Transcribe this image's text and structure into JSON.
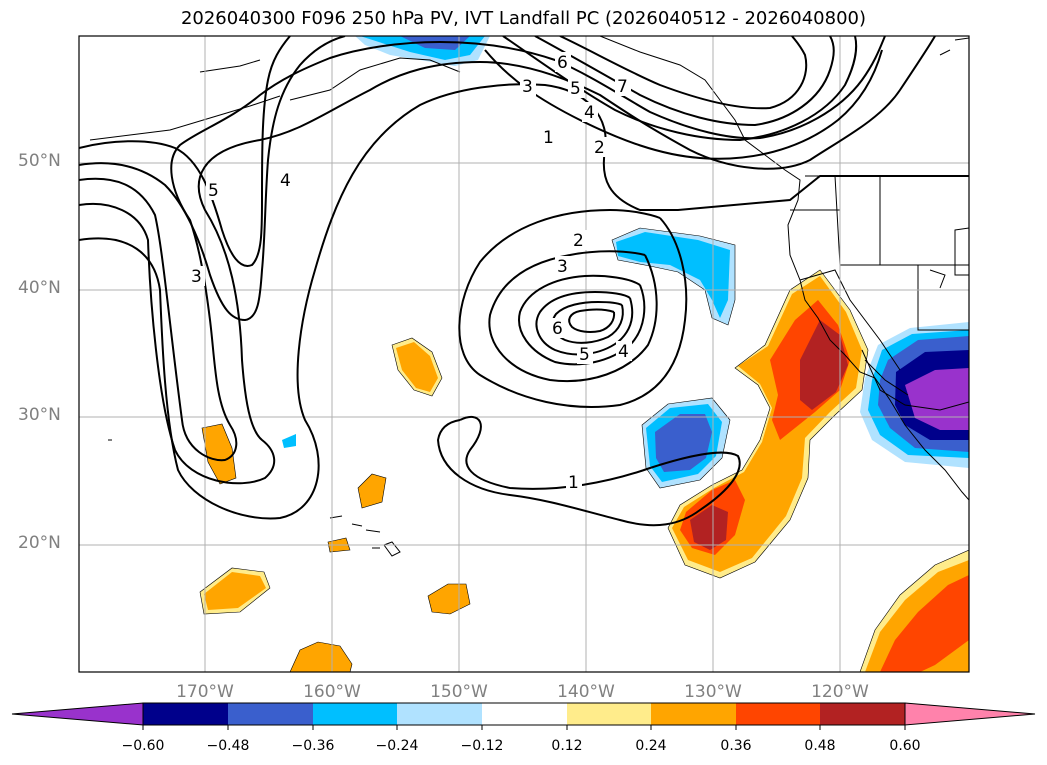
{
  "title": "2026040300 F096 250 hPa PV, IVT Landfall PC (2026040512 - 2026040800)",
  "axes": {
    "lat_labels": [
      "50°N",
      "40°N",
      "30°N",
      "20°N"
    ],
    "lon_labels": [
      "170°W",
      "160°W",
      "150°W",
      "140°W",
      "130°W",
      "120°W"
    ]
  },
  "contours": {
    "labels": [
      "5",
      "4",
      "3",
      "3",
      "6",
      "5",
      "4",
      "7",
      "1",
      "2",
      "2",
      "3",
      "6",
      "5",
      "4",
      "1"
    ]
  },
  "colorbar": {
    "ticks": [
      "−0.60",
      "−0.48",
      "−0.36",
      "−0.24",
      "−0.12",
      "0.12",
      "0.24",
      "0.36",
      "0.48",
      "0.60"
    ],
    "colors": [
      "#9932cc",
      "#00008b",
      "#3a5fcd",
      "#00bfff",
      "#b0e2ff",
      "#ffffff",
      "#ffec8b",
      "#ffa500",
      "#ff4500",
      "#b22222",
      "#ff82ab"
    ]
  }
}
